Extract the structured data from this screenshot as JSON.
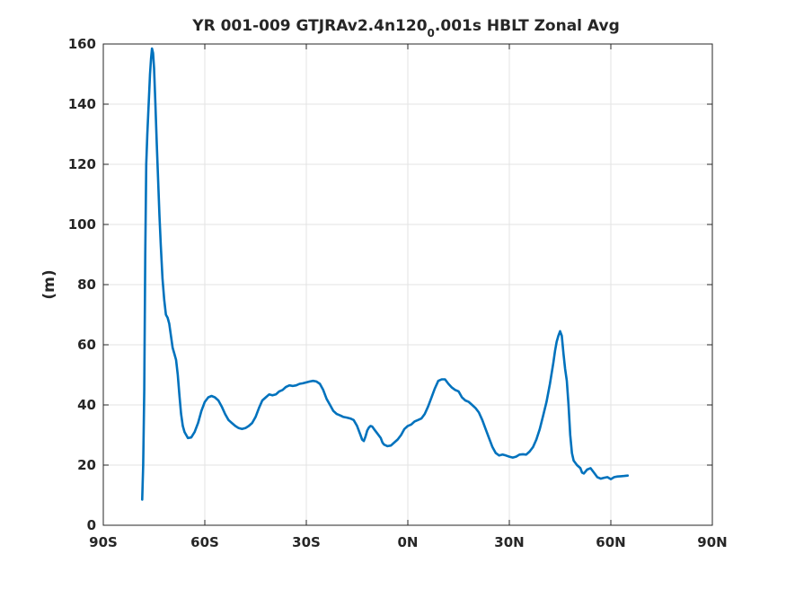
{
  "chart_data": {
    "type": "line",
    "title": {
      "prefix": "YR 001-009 GTJRAv2.4n120",
      "subscript": "0",
      "suffix": ".001s  HBLT Zonal Avg"
    },
    "xlabel": "",
    "ylabel": "(m)",
    "xlim": [
      -90,
      90
    ],
    "ylim": [
      0,
      160
    ],
    "xticks": [
      {
        "value": -90,
        "label": "90S"
      },
      {
        "value": -60,
        "label": "60S"
      },
      {
        "value": -30,
        "label": "30S"
      },
      {
        "value": 0,
        "label": "0N"
      },
      {
        "value": 30,
        "label": "30N"
      },
      {
        "value": 60,
        "label": "60N"
      },
      {
        "value": 90,
        "label": "90N"
      }
    ],
    "yticks": [
      {
        "value": 0,
        "label": "0"
      },
      {
        "value": 20,
        "label": "20"
      },
      {
        "value": 40,
        "label": "40"
      },
      {
        "value": 60,
        "label": "60"
      },
      {
        "value": 80,
        "label": "80"
      },
      {
        "value": 100,
        "label": "100"
      },
      {
        "value": 120,
        "label": "120"
      },
      {
        "value": 140,
        "label": "140"
      },
      {
        "value": 160,
        "label": "160"
      }
    ],
    "grid": true,
    "line_color": "#0072bd",
    "series": [
      {
        "points": [
          [
            -78.5,
            8.5
          ],
          [
            -78.2,
            20
          ],
          [
            -77.9,
            45
          ],
          [
            -77.6,
            90
          ],
          [
            -77.3,
            120
          ],
          [
            -77.0,
            130
          ],
          [
            -76.6,
            140
          ],
          [
            -76.2,
            150
          ],
          [
            -75.9,
            155
          ],
          [
            -75.6,
            158.5
          ],
          [
            -75.3,
            157
          ],
          [
            -75.0,
            152
          ],
          [
            -74.6,
            140
          ],
          [
            -74.2,
            127
          ],
          [
            -73.8,
            115
          ],
          [
            -73.4,
            103
          ],
          [
            -73.0,
            93
          ],
          [
            -72.5,
            82
          ],
          [
            -72.0,
            75
          ],
          [
            -71.5,
            70
          ],
          [
            -71.0,
            69
          ],
          [
            -70.5,
            67
          ],
          [
            -70.0,
            63
          ],
          [
            -69.5,
            59
          ],
          [
            -69.0,
            57
          ],
          [
            -68.5,
            55
          ],
          [
            -68.0,
            50
          ],
          [
            -67.5,
            43
          ],
          [
            -67.0,
            37
          ],
          [
            -66.5,
            33
          ],
          [
            -66.0,
            31
          ],
          [
            -65.0,
            29
          ],
          [
            -64.0,
            29.2
          ],
          [
            -63.0,
            31
          ],
          [
            -62.0,
            34
          ],
          [
            -61.0,
            38
          ],
          [
            -60.0,
            41
          ],
          [
            -59.0,
            42.5
          ],
          [
            -58.0,
            43
          ],
          [
            -57.0,
            42.5
          ],
          [
            -56.0,
            41.5
          ],
          [
            -55.0,
            39.5
          ],
          [
            -54.0,
            37
          ],
          [
            -53.0,
            35
          ],
          [
            -52.0,
            34
          ],
          [
            -51.0,
            33
          ],
          [
            -50.0,
            32.3
          ],
          [
            -49.0,
            32
          ],
          [
            -48.0,
            32.3
          ],
          [
            -47.0,
            33
          ],
          [
            -46.0,
            34
          ],
          [
            -45.0,
            36
          ],
          [
            -44.0,
            39
          ],
          [
            -43.0,
            41.5
          ],
          [
            -42.0,
            42.5
          ],
          [
            -41.0,
            43.5
          ],
          [
            -40.0,
            43.2
          ],
          [
            -39.0,
            43.5
          ],
          [
            -38.0,
            44.5
          ],
          [
            -37.0,
            45
          ],
          [
            -36.0,
            46
          ],
          [
            -35.0,
            46.5
          ],
          [
            -34.0,
            46.3
          ],
          [
            -33.0,
            46.5
          ],
          [
            -32.0,
            47
          ],
          [
            -31.0,
            47.2
          ],
          [
            -30.0,
            47.5
          ],
          [
            -29.0,
            47.8
          ],
          [
            -28.0,
            48
          ],
          [
            -27.0,
            47.8
          ],
          [
            -26.0,
            47
          ],
          [
            -25.0,
            45
          ],
          [
            -24.0,
            42
          ],
          [
            -23.0,
            40
          ],
          [
            -22.0,
            38
          ],
          [
            -21.0,
            37
          ],
          [
            -20.0,
            36.5
          ],
          [
            -19.0,
            36
          ],
          [
            -18.0,
            35.8
          ],
          [
            -17.0,
            35.5
          ],
          [
            -16.0,
            35
          ],
          [
            -15.0,
            33
          ],
          [
            -14.0,
            30
          ],
          [
            -13.5,
            28.5
          ],
          [
            -13.0,
            28
          ],
          [
            -12.5,
            29.5
          ],
          [
            -12.0,
            31.5
          ],
          [
            -11.5,
            32.5
          ],
          [
            -11.0,
            33
          ],
          [
            -10.5,
            32.8
          ],
          [
            -10.0,
            32
          ],
          [
            -9.0,
            30.5
          ],
          [
            -8.0,
            29
          ],
          [
            -7.5,
            27.5
          ],
          [
            -7.0,
            26.8
          ],
          [
            -6.0,
            26.3
          ],
          [
            -5.0,
            26.5
          ],
          [
            -4.0,
            27.5
          ],
          [
            -3.0,
            28.5
          ],
          [
            -2.0,
            30
          ],
          [
            -1.0,
            32
          ],
          [
            0.0,
            33
          ],
          [
            1.0,
            33.5
          ],
          [
            2.0,
            34.5
          ],
          [
            3.0,
            35
          ],
          [
            4.0,
            35.5
          ],
          [
            5.0,
            37
          ],
          [
            6.0,
            39.5
          ],
          [
            7.0,
            42.5
          ],
          [
            8.0,
            45.5
          ],
          [
            9.0,
            48
          ],
          [
            10.0,
            48.5
          ],
          [
            11.0,
            48.5
          ],
          [
            12.0,
            47
          ],
          [
            13.0,
            45.8
          ],
          [
            14.0,
            45
          ],
          [
            15.0,
            44.5
          ],
          [
            16.0,
            42.5
          ],
          [
            17.0,
            41.5
          ],
          [
            18.0,
            41
          ],
          [
            19.0,
            40
          ],
          [
            20.0,
            39
          ],
          [
            21.0,
            37.5
          ],
          [
            22.0,
            35
          ],
          [
            23.0,
            32
          ],
          [
            24.0,
            29
          ],
          [
            25.0,
            26
          ],
          [
            26.0,
            24
          ],
          [
            27.0,
            23.2
          ],
          [
            28.0,
            23.5
          ],
          [
            29.0,
            23.2
          ],
          [
            30.0,
            22.8
          ],
          [
            31.0,
            22.5
          ],
          [
            32.0,
            22.8
          ],
          [
            33.0,
            23.5
          ],
          [
            34.0,
            23.6
          ],
          [
            35.0,
            23.5
          ],
          [
            36.0,
            24.5
          ],
          [
            37.0,
            26
          ],
          [
            38.0,
            28.5
          ],
          [
            39.0,
            32
          ],
          [
            40.0,
            36.5
          ],
          [
            41.0,
            41
          ],
          [
            42.0,
            47
          ],
          [
            43.0,
            54
          ],
          [
            43.5,
            58
          ],
          [
            44.0,
            61
          ],
          [
            44.5,
            63
          ],
          [
            45.0,
            64.5
          ],
          [
            45.5,
            63
          ],
          [
            46.0,
            57
          ],
          [
            46.5,
            52
          ],
          [
            47.0,
            48
          ],
          [
            47.5,
            40
          ],
          [
            48.0,
            30
          ],
          [
            48.5,
            24
          ],
          [
            49.0,
            21.5
          ],
          [
            50.0,
            20
          ],
          [
            51.0,
            19
          ],
          [
            51.5,
            17.5
          ],
          [
            52.0,
            17.2
          ],
          [
            53.0,
            18.5
          ],
          [
            54.0,
            19
          ],
          [
            55.0,
            17.5
          ],
          [
            56.0,
            16
          ],
          [
            57.0,
            15.5
          ],
          [
            58.0,
            15.8
          ],
          [
            59.0,
            16
          ],
          [
            60.0,
            15.3
          ],
          [
            61.0,
            16
          ],
          [
            62.0,
            16.2
          ],
          [
            63.0,
            16.3
          ],
          [
            64.0,
            16.4
          ],
          [
            65.0,
            16.5
          ]
        ]
      }
    ]
  }
}
